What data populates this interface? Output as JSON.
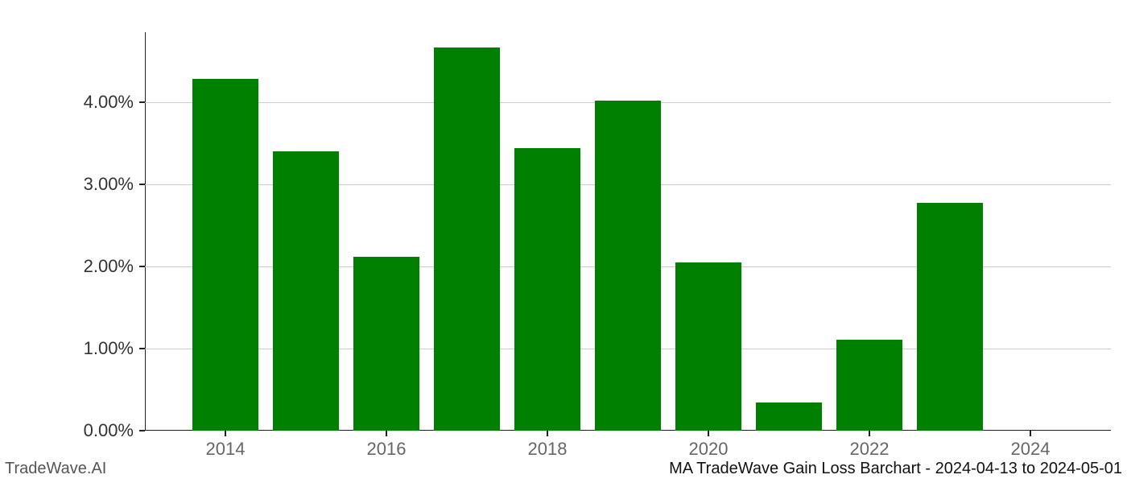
{
  "chart": {
    "type": "bar",
    "title_left": "TradeWave.AI",
    "title_right": "MA TradeWave Gain Loss Barchart - 2024-04-13 to 2024-05-01",
    "background_color": "#ffffff",
    "axis_color": "#222222",
    "grid_color": "#cccccc",
    "tick_label_color": "#333333",
    "xtick_label_color": "#666666",
    "tick_fontsize": 22,
    "footer_fontsize": 20,
    "ylim_min": 0.0,
    "ylim_max": 4.85,
    "ytick_step": 1.0,
    "yticks": [
      {
        "value": 0,
        "label": "0.00%"
      },
      {
        "value": 1,
        "label": "1.00%"
      },
      {
        "value": 2,
        "label": "2.00%"
      },
      {
        "value": 3,
        "label": "3.00%"
      },
      {
        "value": 4,
        "label": "4.00%"
      }
    ],
    "x_domain_min": 2013,
    "x_domain_max": 2025,
    "xticks": [
      {
        "value": 2014,
        "label": "2014"
      },
      {
        "value": 2016,
        "label": "2016"
      },
      {
        "value": 2018,
        "label": "2018"
      },
      {
        "value": 2020,
        "label": "2020"
      },
      {
        "value": 2022,
        "label": "2022"
      },
      {
        "value": 2024,
        "label": "2024"
      }
    ],
    "bar_color": "#008000",
    "bar_width_years": 0.82,
    "bars": [
      {
        "year": 2014,
        "value": 4.28
      },
      {
        "year": 2015,
        "value": 3.4
      },
      {
        "year": 2016,
        "value": 2.12
      },
      {
        "year": 2017,
        "value": 4.66
      },
      {
        "year": 2018,
        "value": 3.44
      },
      {
        "year": 2019,
        "value": 4.02
      },
      {
        "year": 2020,
        "value": 2.05
      },
      {
        "year": 2021,
        "value": 0.34
      },
      {
        "year": 2022,
        "value": 1.11
      },
      {
        "year": 2023,
        "value": 2.77
      }
    ]
  }
}
